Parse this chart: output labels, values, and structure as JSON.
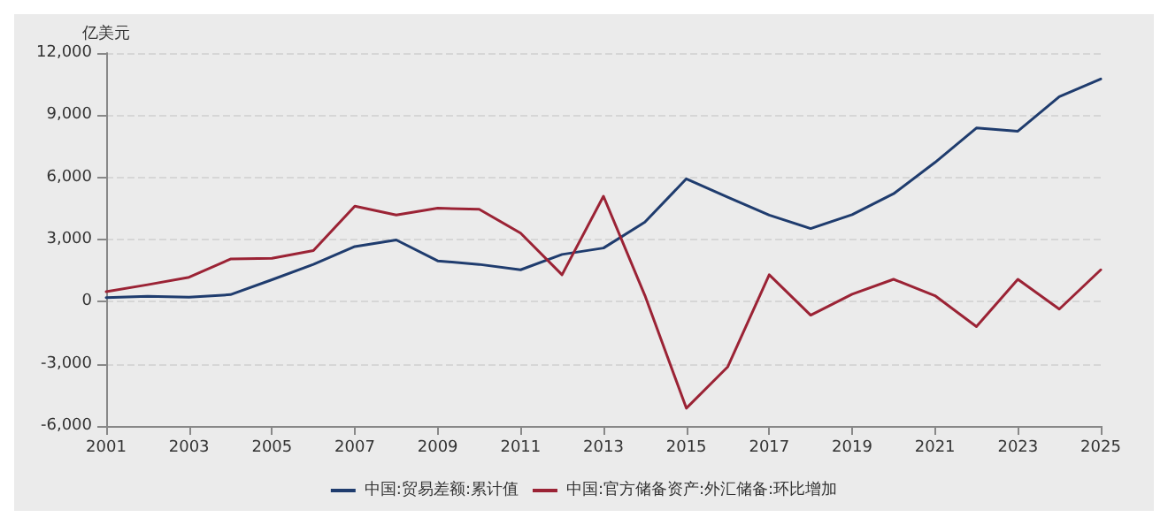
{
  "chart_data": {
    "type": "line",
    "ylabel": "亿美元",
    "x": [
      2001,
      2002,
      2003,
      2004,
      2005,
      2006,
      2007,
      2008,
      2009,
      2010,
      2011,
      2012,
      2013,
      2014,
      2015,
      2016,
      2017,
      2018,
      2019,
      2020,
      2021,
      2022,
      2023,
      2024,
      2025
    ],
    "xlim": [
      2001,
      2025
    ],
    "xticks": [
      2001,
      2003,
      2005,
      2007,
      2009,
      2011,
      2013,
      2015,
      2017,
      2019,
      2021,
      2023,
      2025
    ],
    "ylim": [
      -6000,
      12000
    ],
    "yticks": [
      {
        "value": -6000,
        "label": "-6,000"
      },
      {
        "value": -3000,
        "label": "-3,000"
      },
      0,
      {
        "value": 3000,
        "label": "3,000"
      },
      {
        "value": 6000,
        "label": "6,000"
      },
      {
        "value": 9000,
        "label": "9,000"
      },
      {
        "value": 12000,
        "label": "12,000"
      }
    ],
    "grid": "y",
    "legend": "bottom",
    "marker": "none",
    "line_style": "solid",
    "series": [
      {
        "name": "中国:贸易差额:累计值",
        "color": "#1f3c6e",
        "values": [
          200,
          260,
          220,
          340,
          1060,
          1800,
          2660,
          2980,
          1970,
          1800,
          1540,
          2280,
          2590,
          3840,
          5930,
          5040,
          4180,
          3530,
          4200,
          5210,
          6720,
          8380,
          8230,
          9890,
          10750
        ]
      },
      {
        "name": "中国:官方储备资产:外汇储备:环比增加",
        "color": "#9b2335",
        "values": [
          480,
          820,
          1180,
          2060,
          2090,
          2470,
          4610,
          4180,
          4510,
          4460,
          3310,
          1300,
          5090,
          300,
          -5140,
          -3140,
          1300,
          -650,
          360,
          1080,
          290,
          -1200,
          1080,
          -360,
          1540
        ]
      }
    ]
  }
}
